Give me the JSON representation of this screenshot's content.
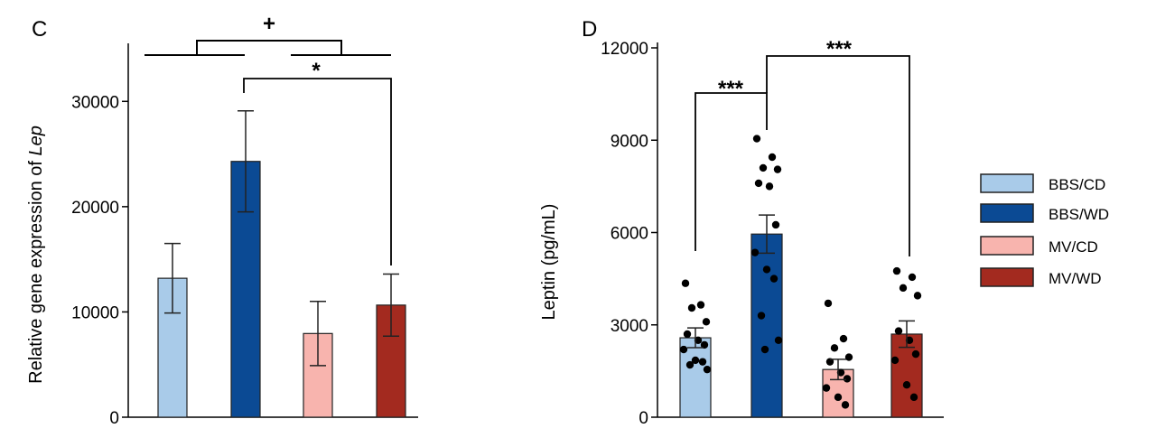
{
  "colors": {
    "BBS/CD": "#a9cbe9",
    "BBS/WD": "#0b4a94",
    "MV/CD": "#f8b4ae",
    "MV/WD": "#a32a1f",
    "axis": "#000000",
    "background": "#ffffff"
  },
  "legend": {
    "placement": "right",
    "items": [
      "BBS/CD",
      "BBS/WD",
      "MV/CD",
      "MV/WD"
    ]
  },
  "chart_data": [
    {
      "panel": "C",
      "type": "bar",
      "categories": [
        "BBS/CD",
        "BBS/WD",
        "MV/CD",
        "MV/WD"
      ],
      "values": [
        13200,
        24300,
        7950,
        10650
      ],
      "error": [
        3300,
        4800,
        3050,
        2950
      ],
      "ylabel_prefix": "Relative gene expression of ",
      "ylabel_italic": "Lep",
      "xlabel": "",
      "ylim": [
        0,
        35000
      ],
      "yticks": [
        0,
        10000,
        20000,
        30000
      ],
      "ytick_labels": [
        "0",
        "10000",
        "20000",
        "30000"
      ],
      "grid": false,
      "annotations": [
        {
          "text": "+",
          "type": "group-bracket",
          "groups": [
            [
              "BBS/CD",
              "BBS/WD"
            ],
            [
              "MV/CD",
              "MV/WD"
            ]
          ]
        },
        {
          "text": "*",
          "type": "bracket",
          "from": "BBS/WD",
          "to": "MV/WD"
        }
      ]
    },
    {
      "panel": "D",
      "type": "bar",
      "categories": [
        "BBS/CD",
        "BBS/WD",
        "MV/CD",
        "MV/WD"
      ],
      "values": [
        2580,
        5950,
        1550,
        2700
      ],
      "error": [
        320,
        620,
        330,
        430
      ],
      "ylabel": "Leptin (pg/mL)",
      "xlabel": "",
      "ylim": [
        0,
        12000
      ],
      "yticks": [
        0,
        3000,
        6000,
        9000,
        12000
      ],
      "ytick_labels": [
        "0",
        "3000",
        "6000",
        "9000",
        "12000"
      ],
      "grid": false,
      "points": [
        [
          4350,
          3650,
          3550,
          3100,
          2700,
          2500,
          2350,
          2200,
          1850,
          1800,
          1700,
          1550
        ],
        [
          9050,
          8450,
          8100,
          8050,
          7600,
          7500,
          6250,
          5350,
          4800,
          4500,
          3300,
          2500,
          2200
        ],
        [
          3700,
          2550,
          2250,
          1950,
          1800,
          1450,
          1250,
          950,
          650,
          400
        ],
        [
          4750,
          4550,
          4200,
          3950,
          2800,
          2500,
          2050,
          1850,
          1050,
          650
        ]
      ],
      "annotations": [
        {
          "text": "***",
          "type": "bracket",
          "from": "BBS/CD",
          "to": "BBS/WD"
        },
        {
          "text": "***",
          "type": "bracket",
          "from": "BBS/WD",
          "to": "MV/WD"
        }
      ]
    }
  ]
}
